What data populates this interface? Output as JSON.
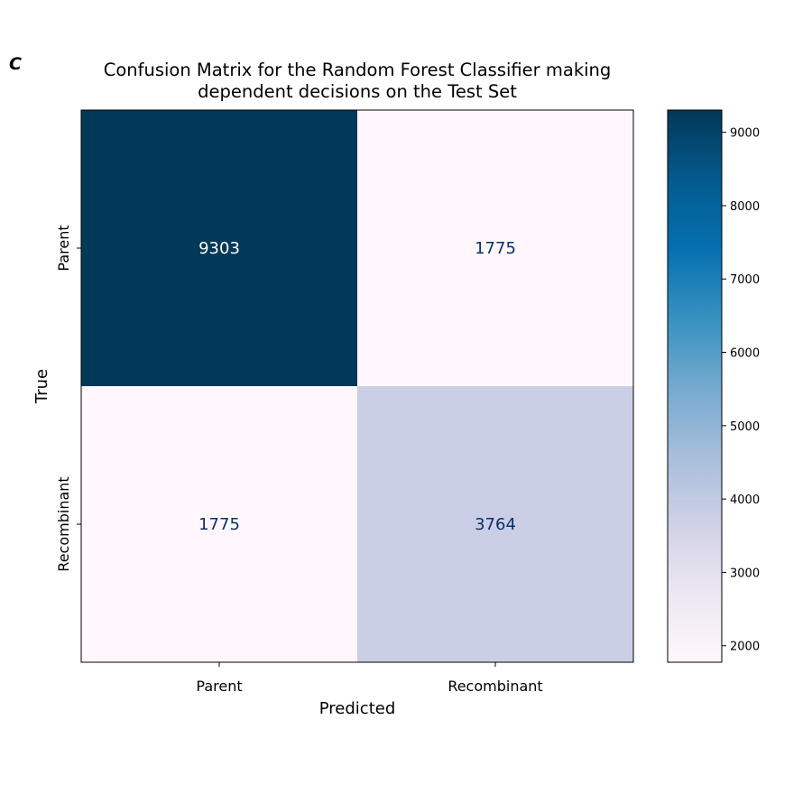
{
  "panel_label": "C",
  "chart_data": {
    "type": "heatmap",
    "title": "Confusion Matrix for the Random Forest Classifier making dependent decisions on the Test Set",
    "title_lines": [
      "Confusion Matrix for the Random Forest Classifier making",
      "dependent decisions on the Test Set"
    ],
    "xlabel": "Predicted",
    "ylabel": "True",
    "x_categories": [
      "Parent",
      "Recombinant"
    ],
    "y_categories": [
      "Parent",
      "Recombinant"
    ],
    "values": [
      [
        9303,
        1775
      ],
      [
        1775,
        3764
      ]
    ],
    "colormap": "PuBu",
    "colormap_stops": [
      "#fff7fb",
      "#ece7f2",
      "#d0d1e6",
      "#a6bddb",
      "#74a9cf",
      "#3690c0",
      "#0570b0",
      "#045a8d",
      "#023858"
    ],
    "colorbar": {
      "min": 1775,
      "max": 9303,
      "ticks": [
        2000,
        3000,
        4000,
        5000,
        6000,
        7000,
        8000,
        9000
      ],
      "tick_labels": [
        "2000",
        "3000",
        "4000",
        "5000",
        "6000",
        "7000",
        "8000",
        "9000"
      ]
    },
    "cell_text_colors": {
      "light": "#ffffff",
      "dark": "#08306b"
    },
    "grid": false
  }
}
